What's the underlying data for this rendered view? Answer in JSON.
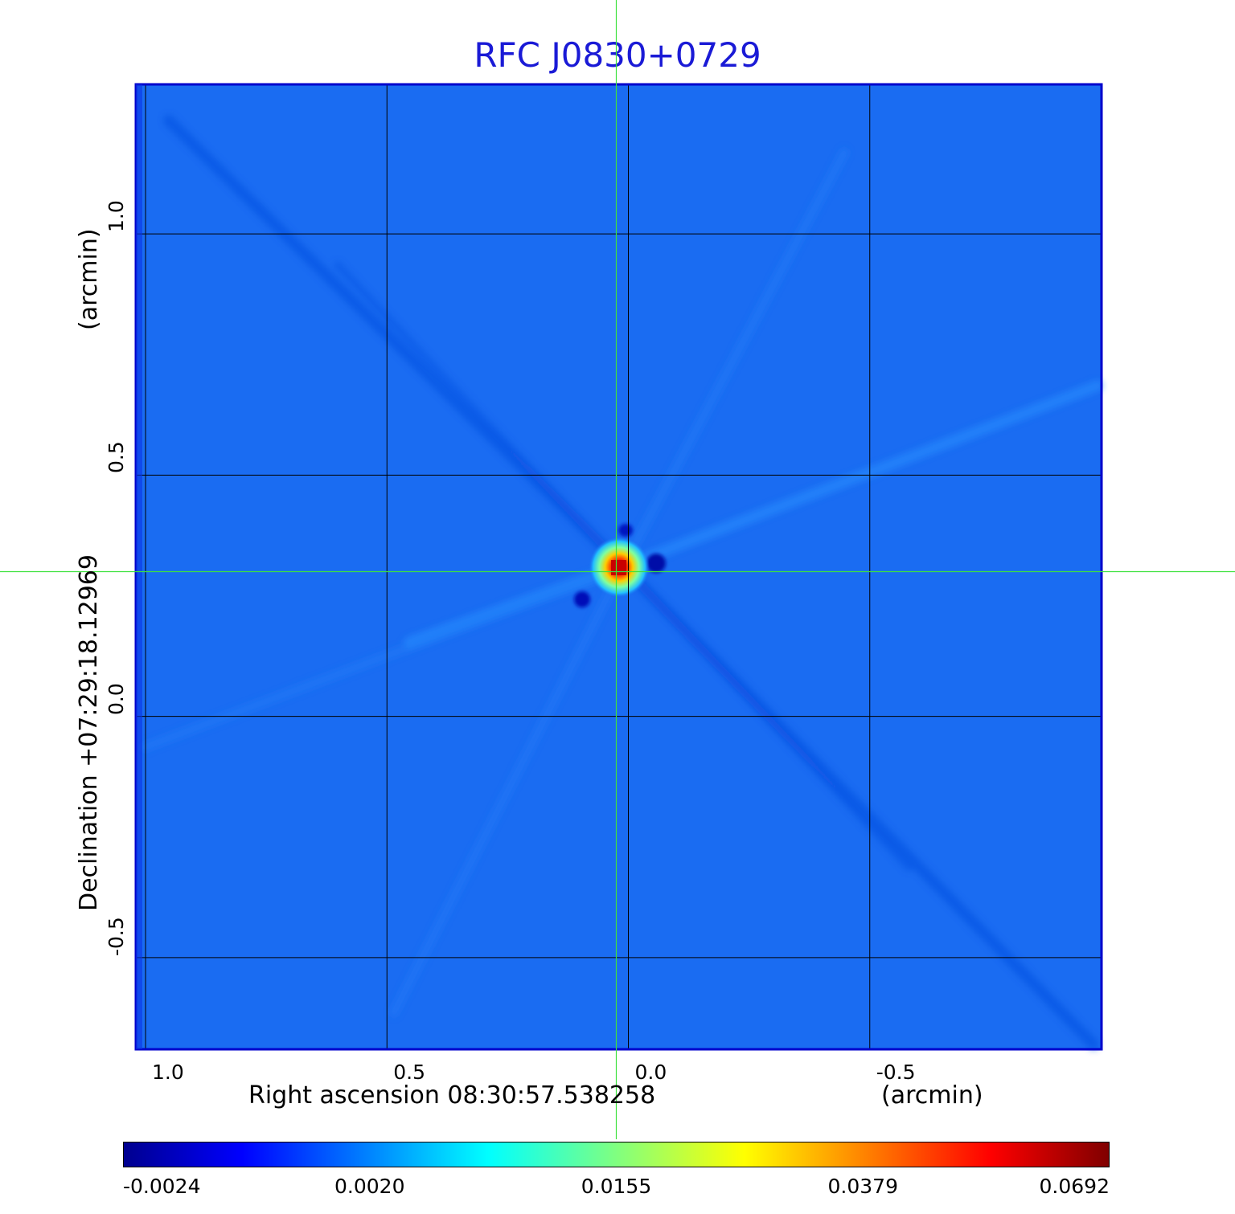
{
  "chart_data": {
    "type": "heatmap",
    "title": "RFC J0830+0729",
    "xlabel": "Right ascension  08:30:57.538258",
    "xlabel_unit": "(arcmin)",
    "ylabel": "Declination  +07:29:18.12969",
    "ylabel_unit": "(arcmin)",
    "x_range": [
      1.02,
      -0.98
    ],
    "y_range": [
      -0.69,
      1.31
    ],
    "x_ticks": [
      {
        "value": 1.0,
        "label": "1.0"
      },
      {
        "value": 0.5,
        "label": "0.5"
      },
      {
        "value": 0.0,
        "label": "0.0"
      },
      {
        "value": -0.5,
        "label": "-0.5"
      }
    ],
    "y_ticks": [
      {
        "value": 1.0,
        "label": "1.0"
      },
      {
        "value": 0.5,
        "label": "0.5"
      },
      {
        "value": 0.0,
        "label": "0.0"
      },
      {
        "value": -0.5,
        "label": "-0.5"
      }
    ],
    "grid": true,
    "crosshair": {
      "x": 0.025,
      "y": 0.3
    },
    "source_peak": {
      "x": 0.02,
      "y": 0.3,
      "value": 0.0692
    },
    "colorbar": {
      "colormap": "jet",
      "orientation": "horizontal",
      "position": "bottom",
      "ticks": [
        "-0.0024",
        "0.0020",
        "0.0155",
        "0.0379",
        "0.0692"
      ]
    }
  },
  "colors": {
    "title": "#1a1ad6",
    "background_field": "#1a6cf2",
    "frame": "#0000cc",
    "grid": "#000000",
    "crosshair": "#3ee13e"
  }
}
